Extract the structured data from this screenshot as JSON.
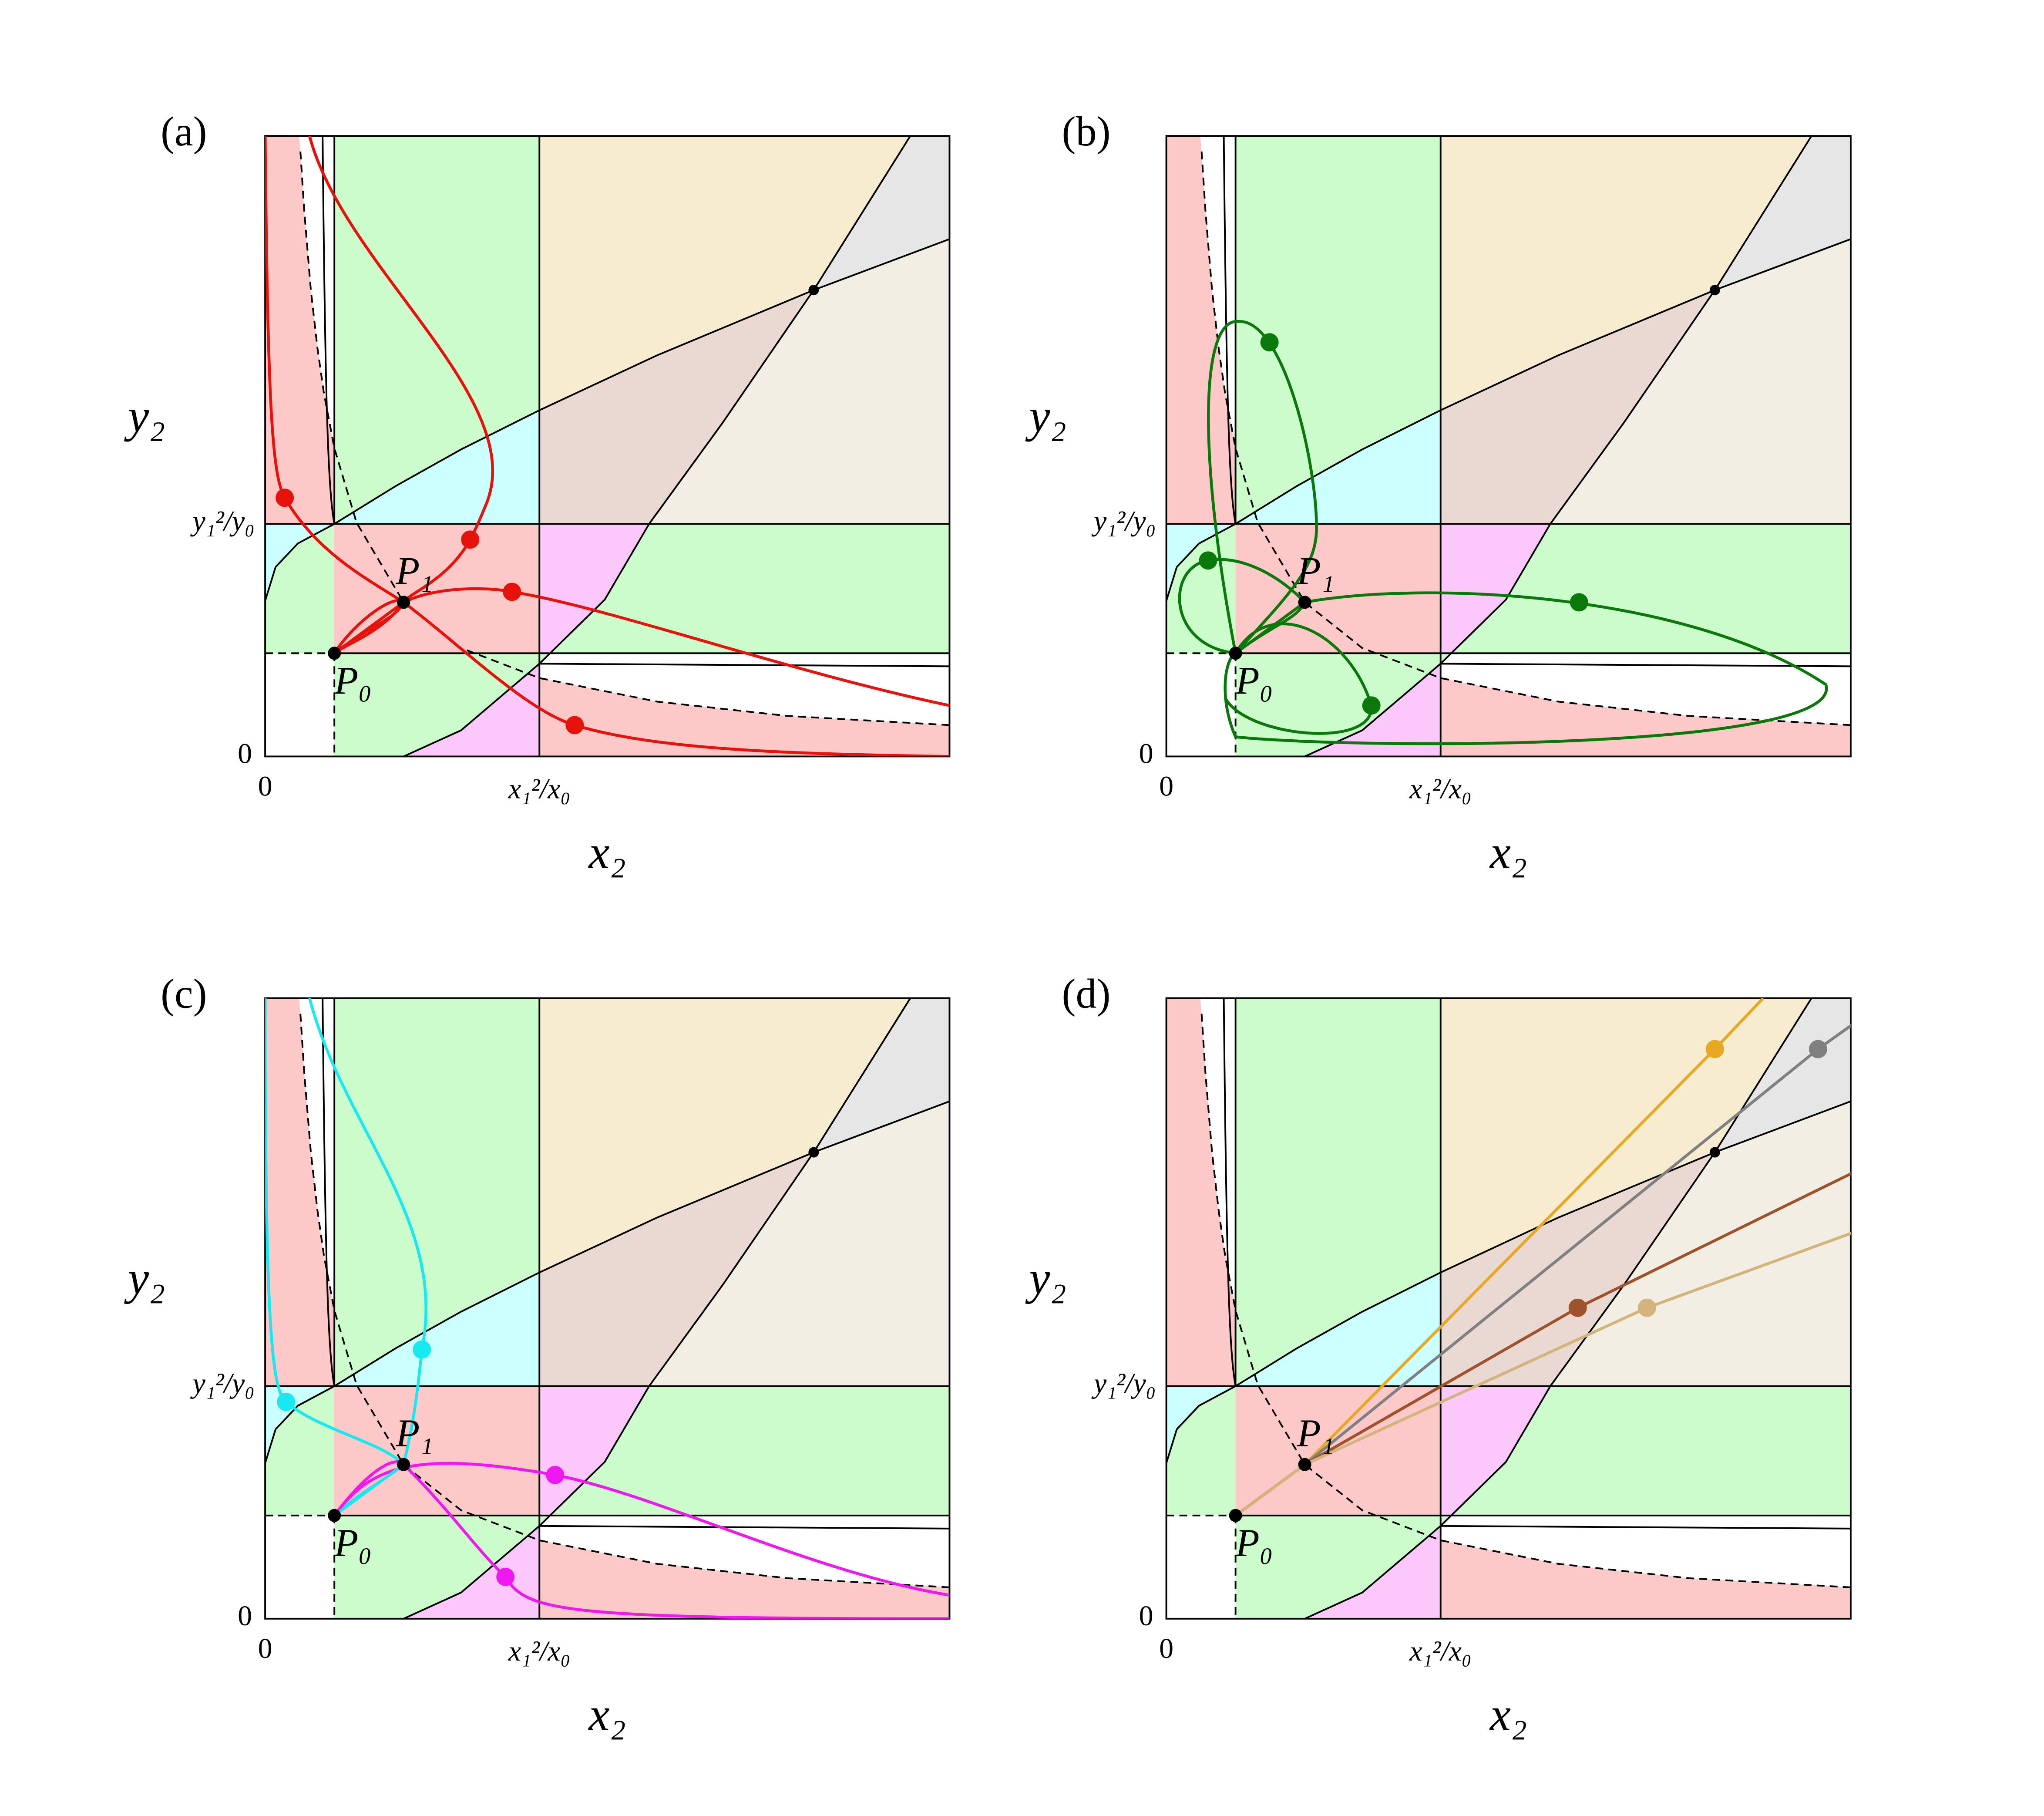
{
  "panels": [
    {
      "label": "(a)",
      "x_label": "x₂",
      "y_label": "y₂",
      "x_ticks": [
        "0",
        "x₁²/x₀"
      ],
      "y_ticks": [
        "0",
        "y₁²/y₀"
      ],
      "points": [
        "P₀",
        "P₁"
      ]
    },
    {
      "label": "(b)",
      "x_label": "x₂",
      "y_label": "y₂",
      "x_ticks": [
        "0",
        "x₁²/x₀"
      ],
      "y_ticks": [
        "0",
        "y₁²/y₀"
      ],
      "points": [
        "P₀",
        "P₁"
      ]
    },
    {
      "label": "(c)",
      "x_label": "x₂",
      "y_label": "y₂",
      "x_ticks": [
        "0",
        "x₁²/x₀"
      ],
      "y_ticks": [
        "0",
        "y₁²/y₀"
      ],
      "points": [
        "P₀",
        "P₁"
      ]
    },
    {
      "label": "(d)",
      "x_label": "x₂",
      "y_label": "y₂",
      "x_ticks": [
        "0",
        "x₁²/x₀"
      ],
      "y_ticks": [
        "0",
        "y₁²/y₀"
      ],
      "points": [
        "P₀",
        "P₁"
      ]
    }
  ]
}
